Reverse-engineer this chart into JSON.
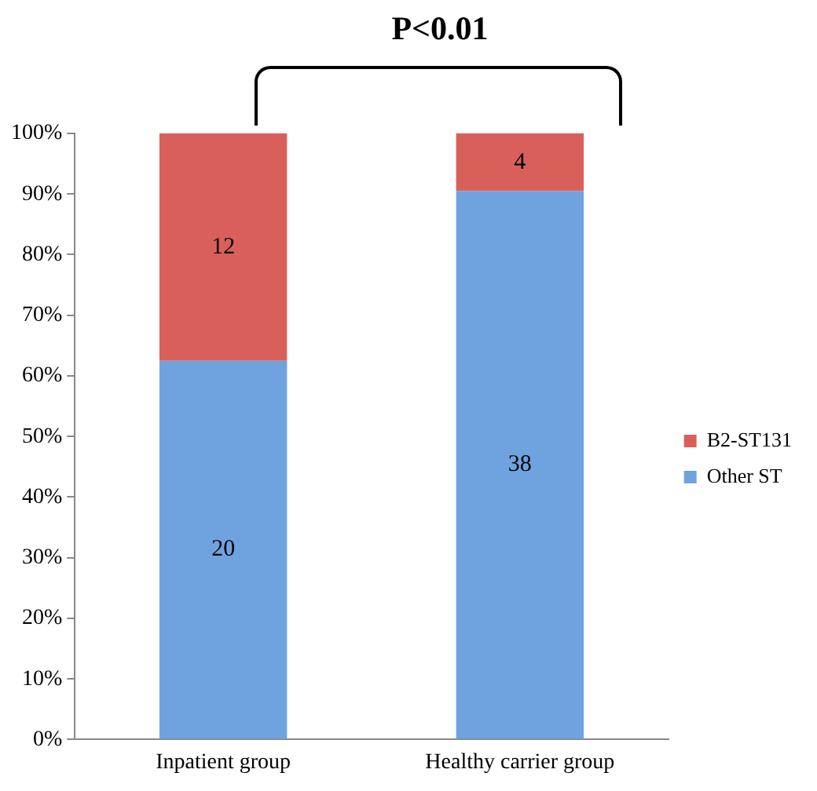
{
  "chart_data": {
    "type": "bar",
    "stacked": true,
    "annotations": [
      "P<0.01",
      "20",
      "38",
      "12",
      "4"
    ],
    "categories": [
      "Inpatient group",
      "Healthy carrier group"
    ],
    "series": [
      {
        "name": "Other ST",
        "color": "#6fa3e0",
        "values": [
          62.5,
          90.5
        ]
      },
      {
        "name": "B2-ST131",
        "color": "#d9605a",
        "values": [
          37.5,
          9.5
        ]
      }
    ],
    "ylim": [
      0,
      100
    ],
    "yticks": [
      {
        "value": 0,
        "label": "0%"
      },
      {
        "value": 10,
        "label": "10%"
      },
      {
        "value": 20,
        "label": "20%"
      },
      {
        "value": 30,
        "label": "30%"
      },
      {
        "value": 40,
        "label": "40%"
      },
      {
        "value": 50,
        "label": "50%"
      },
      {
        "value": 60,
        "label": "60%"
      },
      {
        "value": 70,
        "label": "70%"
      },
      {
        "value": 80,
        "label": "80%"
      },
      {
        "value": 90,
        "label": "90%"
      },
      {
        "value": 100,
        "label": "100%"
      }
    ],
    "grid": false,
    "legend": "right"
  }
}
